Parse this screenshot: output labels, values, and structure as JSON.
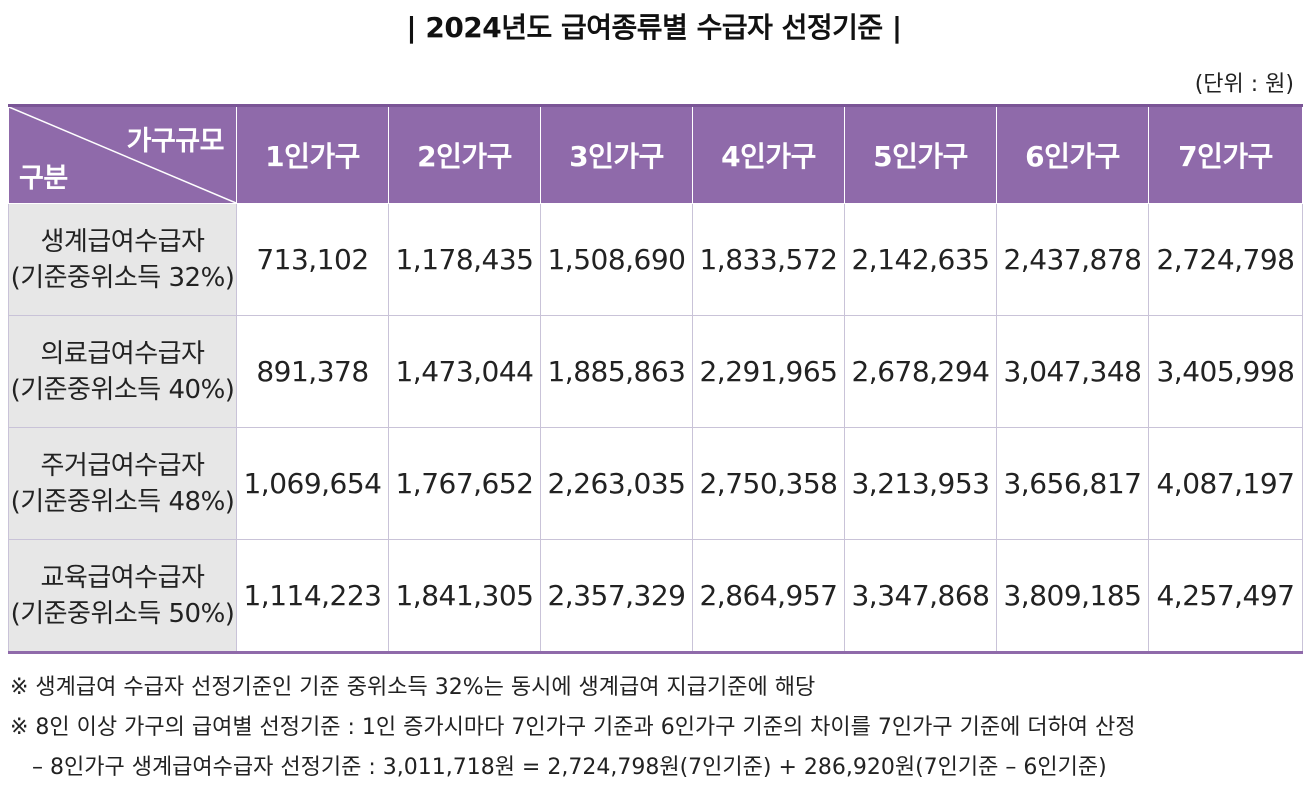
{
  "title": "| 2024년도 급여종류별 수급자 선정기준 |",
  "unit_label": "(단위 : 원)",
  "header": {
    "corner_top": "가구규모",
    "corner_bottom": "구분",
    "columns": [
      "1인가구",
      "2인가구",
      "3인가구",
      "4인가구",
      "5인가구",
      "6인가구",
      "7인가구"
    ]
  },
  "rows": [
    {
      "name": "생계급여수급자",
      "sub": "(기준중위소득 32%)",
      "values": [
        "713,102",
        "1,178,435",
        "1,508,690",
        "1,833,572",
        "2,142,635",
        "2,437,878",
        "2,724,798"
      ]
    },
    {
      "name": "의료급여수급자",
      "sub": "(기준중위소득 40%)",
      "values": [
        "891,378",
        "1,473,044",
        "1,885,863",
        "2,291,965",
        "2,678,294",
        "3,047,348",
        "3,405,998"
      ]
    },
    {
      "name": "주거급여수급자",
      "sub": "(기준중위소득 48%)",
      "values": [
        "1,069,654",
        "1,767,652",
        "2,263,035",
        "2,750,358",
        "3,213,953",
        "3,656,817",
        "4,087,197"
      ]
    },
    {
      "name": "교육급여수급자",
      "sub": "(기준중위소득 50%)",
      "values": [
        "1,114,223",
        "1,841,305",
        "2,357,329",
        "2,864,957",
        "3,347,868",
        "3,809,185",
        "4,257,497"
      ]
    }
  ],
  "notes": [
    "※ 생계급여 수급자 선정기준인 기준 중위소득 32%는 동시에 생계급여 지급기준에 해당",
    "※ 8인 이상 가구의 급여별 선정기준 : 1인 증가시마다 7인가구 기준과 6인가구 기준의 차이를 7인가구 기준에 더하여 산정",
    "– 8인가구 생계급여수급자 선정기준 : 3,011,718원 = 2,724,798원(7인기준) + 286,920원(7인기준 – 6인기준)"
  ]
}
